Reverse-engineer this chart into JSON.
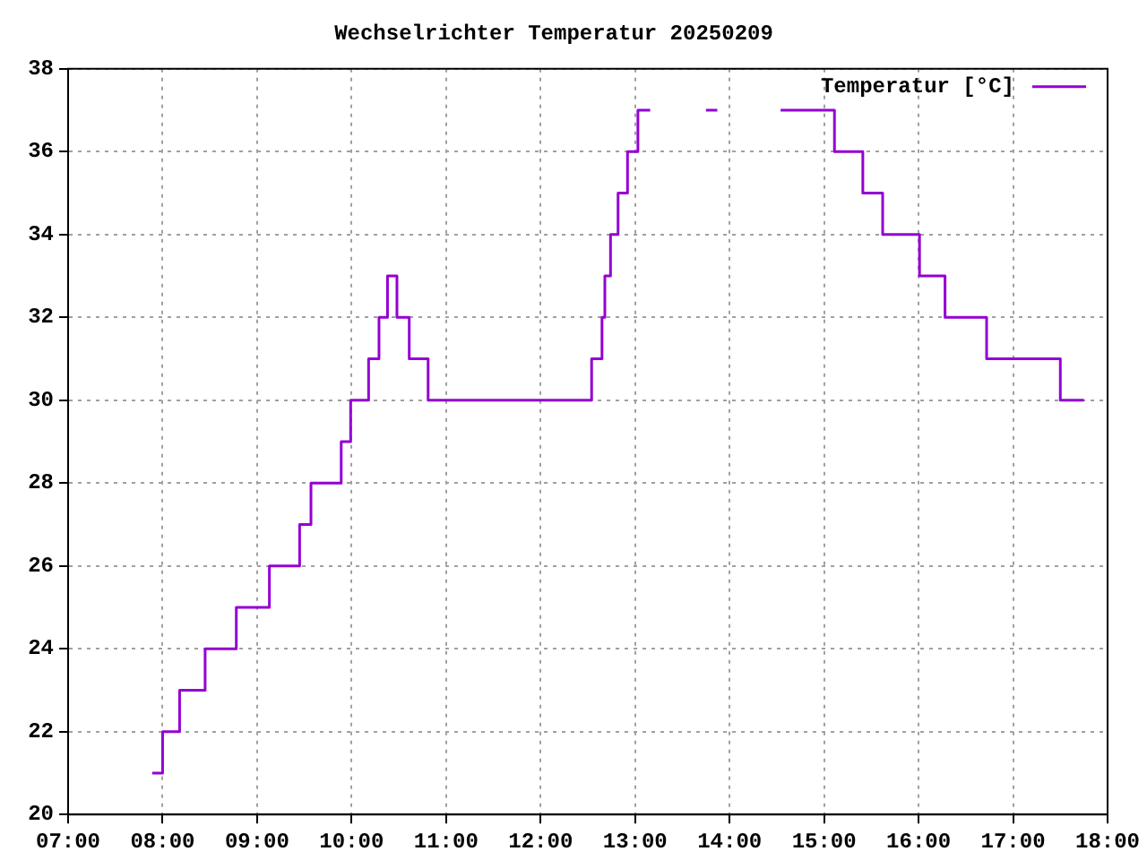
{
  "chart_data": {
    "type": "step",
    "title": "Wechselrichter Temperatur 20250209",
    "x": [
      7.89,
      8.0,
      8.18,
      8.45,
      8.78,
      9.13,
      9.45,
      9.57,
      9.89,
      9.99,
      10.18,
      10.29,
      10.38,
      10.48,
      10.61,
      10.81,
      12.54,
      12.65,
      12.68,
      12.74,
      12.82,
      12.92,
      13.03,
      13.16,
      13.17,
      13.75,
      13.87,
      13.88,
      14.54,
      15.11,
      15.41,
      15.62,
      16.01,
      16.28,
      16.72,
      17.5,
      17.75
    ],
    "series": [
      {
        "name": "Temperatur [°C]",
        "color": "#9400d3",
        "values": [
          21,
          22,
          23,
          24,
          25,
          26,
          27,
          28,
          29,
          30,
          31,
          32,
          33,
          32,
          31,
          30,
          31,
          32,
          33,
          34,
          35,
          36,
          37,
          37,
          null,
          37,
          37,
          null,
          37,
          36,
          35,
          34,
          33,
          32,
          31,
          30,
          30
        ]
      }
    ],
    "xlim": [
      7,
      18
    ],
    "xticks": [
      {
        "value": 7,
        "label": "07:00"
      },
      {
        "value": 8,
        "label": "08:00"
      },
      {
        "value": 9,
        "label": "09:00"
      },
      {
        "value": 10,
        "label": "10:00"
      },
      {
        "value": 11,
        "label": "11:00"
      },
      {
        "value": 12,
        "label": "12:00"
      },
      {
        "value": 13,
        "label": "13:00"
      },
      {
        "value": 14,
        "label": "14:00"
      },
      {
        "value": 15,
        "label": "15:00"
      },
      {
        "value": 16,
        "label": "16:00"
      },
      {
        "value": 17,
        "label": "17:00"
      },
      {
        "value": 18,
        "label": "18:00"
      }
    ],
    "ylim": [
      20,
      38
    ],
    "yticks": [
      20,
      22,
      24,
      26,
      28,
      30,
      32,
      34,
      36,
      38
    ],
    "grid": true,
    "legend": "top right",
    "marker": "none",
    "line_style": "solid"
  }
}
